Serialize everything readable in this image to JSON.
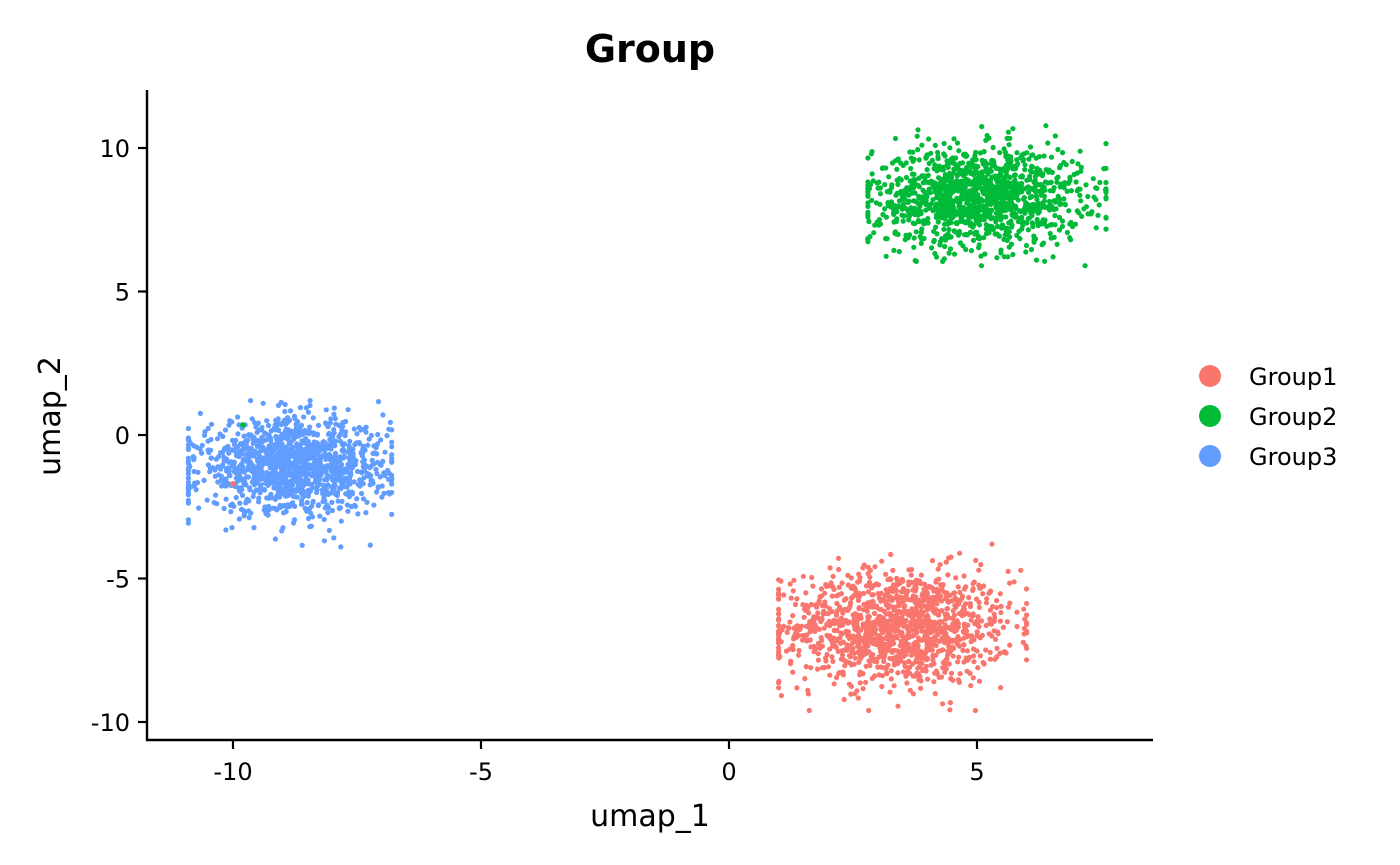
{
  "chart_data": {
    "type": "scatter",
    "title": "Group",
    "xlabel": "umap_1",
    "ylabel": "umap_2",
    "xlim": [
      -11.8,
      8.5
    ],
    "ylim": [
      -10.6,
      12.0
    ],
    "xticks": [
      -10,
      -5,
      0,
      5
    ],
    "yticks": [
      -10,
      -5,
      0,
      5,
      10
    ],
    "grid": false,
    "legend_position": "right",
    "point_count_note": "",
    "series": [
      {
        "name": "Group1",
        "color": "#F8766D",
        "cluster": {
          "center": [
            3.4,
            -6.7
          ],
          "spread": [
            1.15,
            1.0
          ],
          "n": 1300
        },
        "extents": {
          "x": [
            1.0,
            6.0
          ],
          "y": [
            -9.6,
            -3.8
          ]
        }
      },
      {
        "name": "Group2",
        "color": "#00BA38",
        "cluster": {
          "center": [
            5.0,
            8.3
          ],
          "spread": [
            1.05,
            0.85
          ],
          "n": 1300
        },
        "extents": {
          "x": [
            2.8,
            7.6
          ],
          "y": [
            5.9,
            10.9
          ]
        }
      },
      {
        "name": "Group3",
        "color": "#619CFF",
        "cluster": {
          "center": [
            -8.8,
            -1.1
          ],
          "spread": [
            0.95,
            0.8
          ],
          "n": 1300
        },
        "extents": {
          "x": [
            -10.9,
            -6.8
          ],
          "y": [
            -3.9,
            1.2
          ]
        }
      }
    ],
    "outliers": [
      {
        "series": "Group2",
        "x": -9.8,
        "y": 0.35
      },
      {
        "series": "Group1",
        "x": -10.0,
        "y": -1.7
      },
      {
        "series": "Group1",
        "x": 4.0,
        "y": -7.8
      }
    ]
  }
}
